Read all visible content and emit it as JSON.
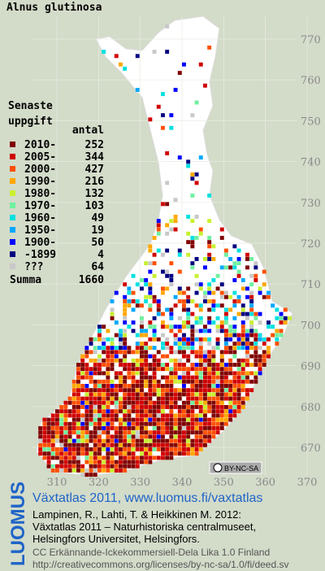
{
  "title": "Alnus glutinosa",
  "legend": {
    "heading": [
      "Senaste",
      "uppgift"
    ],
    "count_heading": "antal",
    "items": [
      {
        "label": "2010-",
        "count": 252,
        "color": "#800000"
      },
      {
        "label": "2005-",
        "count": 344,
        "color": "#d00000"
      },
      {
        "label": "2000-",
        "count": 427,
        "color": "#ff5000"
      },
      {
        "label": "1990-",
        "count": 216,
        "color": "#ffa800"
      },
      {
        "label": "1980-",
        "count": 132,
        "color": "#c8f030"
      },
      {
        "label": "1970-",
        "count": 103,
        "color": "#70f0a0"
      },
      {
        "label": "1960-",
        "count": 49,
        "color": "#00e0e0"
      },
      {
        "label": "1950-",
        "count": 19,
        "color": "#00a8ff"
      },
      {
        "label": "1900-",
        "count": 50,
        "color": "#0000ff"
      },
      {
        "label": "-1899",
        "count": 4,
        "color": "#000080"
      },
      {
        "label": "???",
        "count": 64,
        "color": "#c8c8c8"
      }
    ],
    "total": {
      "label": "Summa",
      "count": 1660
    }
  },
  "grid": {
    "northing_labels": [
      770,
      760,
      750,
      740,
      730,
      720,
      710,
      700,
      690,
      680,
      670
    ],
    "easting_labels": [
      310,
      320,
      330,
      340,
      350,
      360,
      370
    ]
  },
  "license_badge": "BY-NC-SA",
  "footer": {
    "logo": "LUOMUS",
    "headline": "Växtatlas 2011, www.luomus.fi/vaxtatlas",
    "citation": [
      "Lampinen, R., Lahti, T. & Heikkinen M. 2012:",
      "Växtatlas 2011 – Naturhistoriska centralmuseet,",
      "Helsingfors Universitet, Helsingfors."
    ],
    "license": [
      "CC Erkännande-Ickekommersiell-Dela Lika 1.0 Finland",
      "http://creativecommons.org/licenses/by-nc-sa/1.0/fi/deed.sv"
    ]
  }
}
